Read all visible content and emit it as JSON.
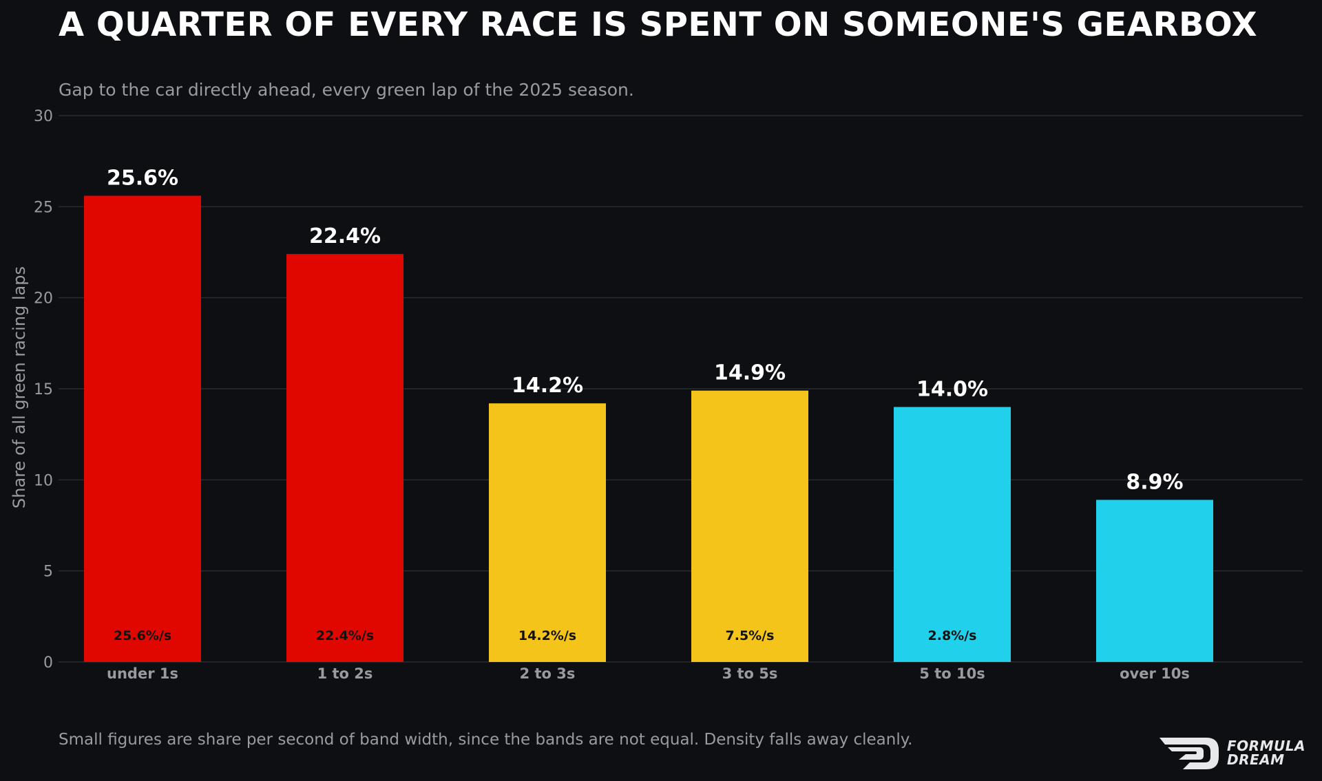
{
  "title": "A QUARTER OF EVERY RACE IS SPENT ON SOMEONE'S GEARBOX",
  "subtitle": "Gap to the car directly ahead, every green lap of the 2025 season.",
  "footnote": "Small figures are share per second of band width, since the bands are not equal. Density falls away cleanly.",
  "brand": {
    "line1": "FORMULA",
    "line2": "DREAM"
  },
  "colors": {
    "background": "#0e0f13",
    "red": "#e00700",
    "yellow": "#f5c41a",
    "cyan": "#21d0ea",
    "grid": "#2a2b30",
    "muted": "#9a9a9f"
  },
  "chart_data": {
    "type": "bar",
    "title": "A QUARTER OF EVERY RACE IS SPENT ON SOMEONE'S GEARBOX",
    "subtitle": "Gap to the car directly ahead, every green lap of the 2025 season.",
    "xlabel": "",
    "ylabel": "Share of all green racing laps",
    "ylim": [
      0,
      30
    ],
    "yticks": [
      0,
      5,
      10,
      15,
      20,
      25,
      30
    ],
    "grid": true,
    "categories": [
      "under 1s",
      "1 to 2s",
      "2 to 3s",
      "3 to 5s",
      "5 to 10s",
      "over 10s"
    ],
    "values": [
      25.6,
      22.4,
      14.2,
      14.9,
      14.0,
      8.9
    ],
    "value_labels": [
      "25.6%",
      "22.4%",
      "14.2%",
      "14.9%",
      "14.0%",
      "8.9%"
    ],
    "density_labels": [
      "25.6%/s",
      "22.4%/s",
      "14.2%/s",
      "7.5%/s",
      "2.8%/s",
      ""
    ],
    "bar_colors": [
      "#e00700",
      "#e00700",
      "#f5c41a",
      "#f5c41a",
      "#21d0ea",
      "#21d0ea"
    ]
  }
}
